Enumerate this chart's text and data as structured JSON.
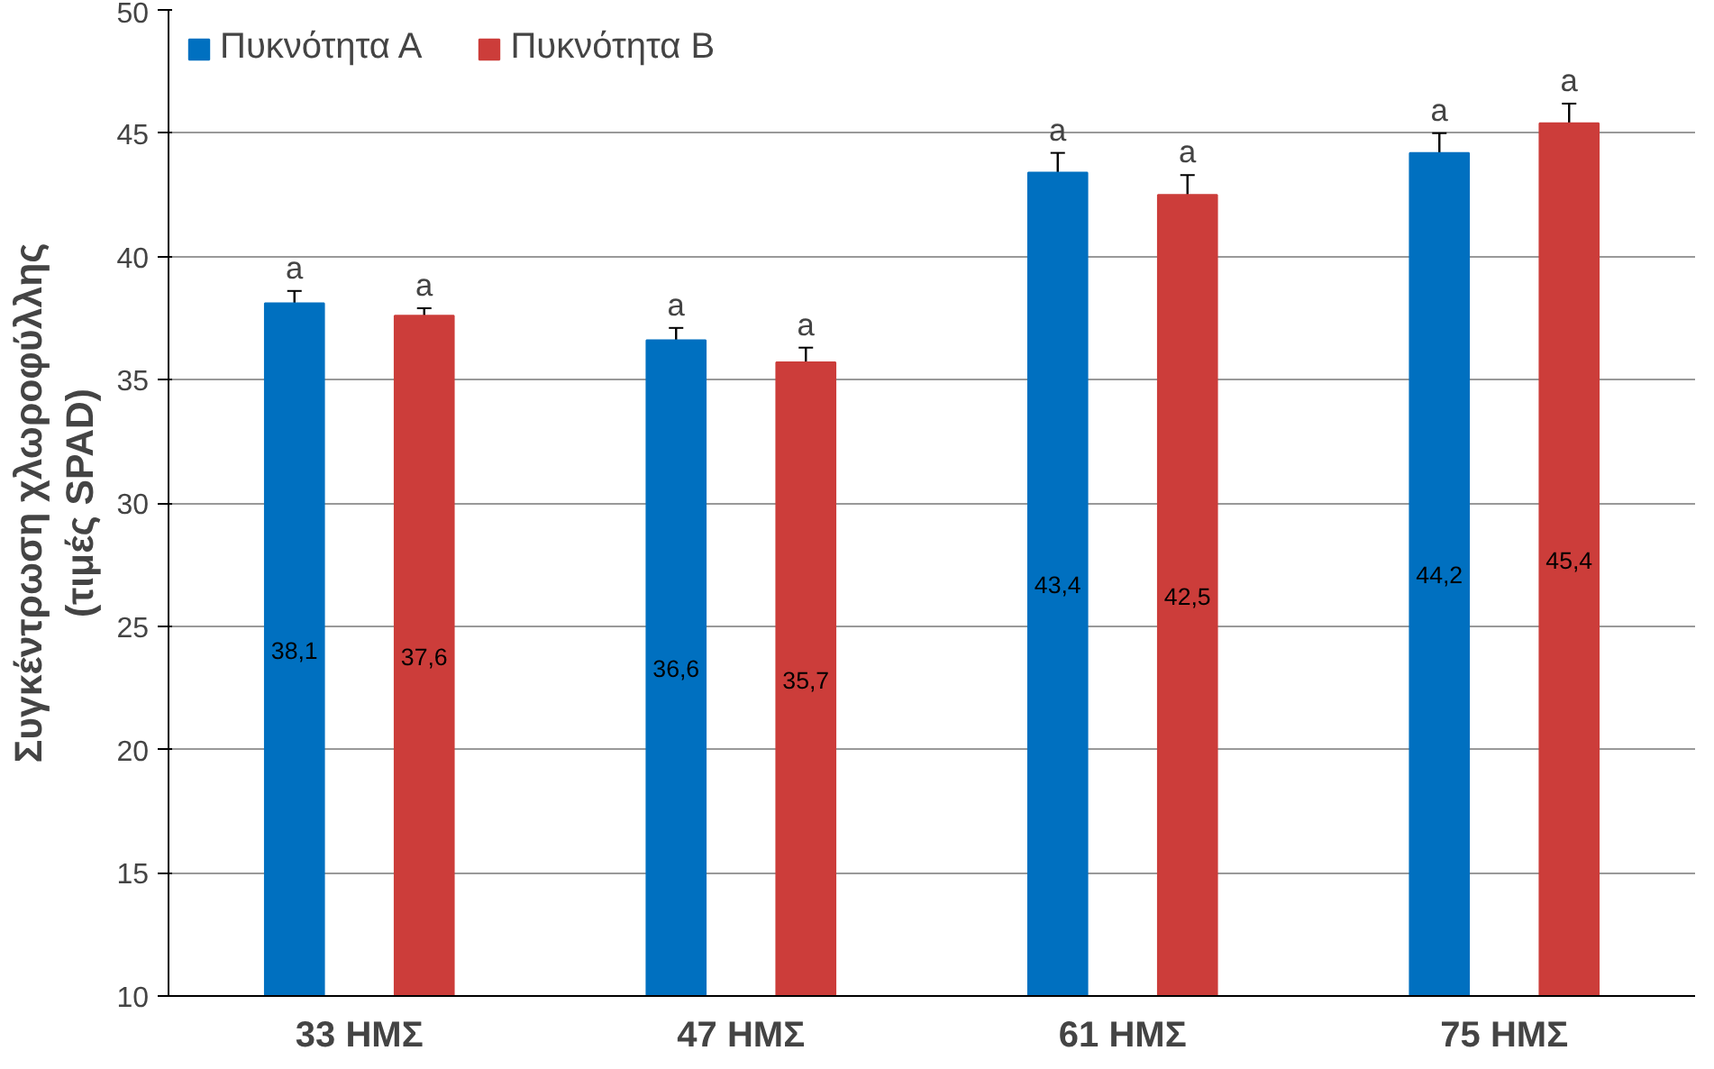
{
  "chart_data": {
    "type": "bar",
    "ylabel": "Συγκέντρωση χλωροφύλλης\n(τιμές SPAD)",
    "categories": [
      "33 ΗΜΣ",
      "47 ΗΜΣ",
      "61 ΗΜΣ",
      "75 ΗΜΣ"
    ],
    "series": [
      {
        "name": "Πυκνότητα Α",
        "color": "#0070c0",
        "values": [
          38.1,
          36.6,
          43.4,
          44.2
        ],
        "errors": [
          0.5,
          0.5,
          0.8,
          0.8
        ],
        "value_labels": [
          "38,1",
          "36,6",
          "43,4",
          "44,2"
        ]
      },
      {
        "name": "Πυκνότητα Β",
        "color": "#cc3d3a",
        "values": [
          37.6,
          35.7,
          42.5,
          45.4
        ],
        "errors": [
          0.3,
          0.6,
          0.8,
          0.8
        ],
        "value_labels": [
          "37,6",
          "35,7",
          "42,5",
          "45,4"
        ]
      }
    ],
    "annotations": [
      "a",
      "a",
      "a",
      "a",
      "a",
      "a",
      "a",
      "a"
    ],
    "ylim": [
      10,
      50
    ],
    "yticks": [
      10,
      15,
      20,
      25,
      30,
      35,
      40,
      45,
      50
    ],
    "grid": "y",
    "legend": "top left"
  }
}
